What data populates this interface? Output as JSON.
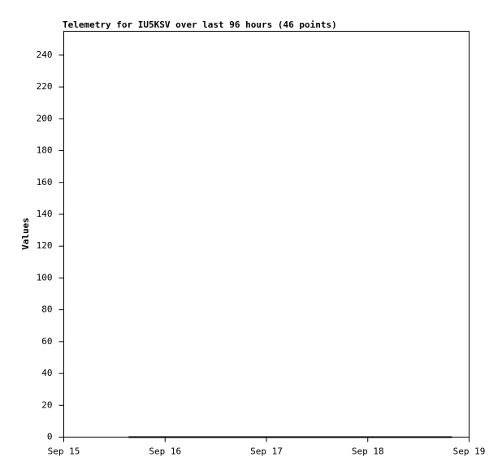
{
  "chart_data": {
    "type": "line",
    "title": "Telemetry for IU5KSV over last 96 hours (46 points)",
    "ylabel": "Values",
    "x": [
      0.64,
      0.71,
      0.78,
      0.85,
      0.92,
      0.99,
      1.07,
      1.14,
      1.21,
      1.28,
      1.35,
      1.42,
      1.49,
      1.56,
      1.63,
      1.7,
      1.77,
      1.85,
      1.92,
      1.99,
      2.06,
      2.13,
      2.2,
      2.27,
      2.34,
      2.41,
      2.48,
      2.55,
      2.63,
      2.7,
      2.77,
      2.84,
      2.91,
      2.98,
      3.05,
      3.12,
      3.19,
      3.26,
      3.34,
      3.41,
      3.48,
      3.55,
      3.62,
      3.69,
      3.76,
      3.83
    ],
    "values": [
      0,
      0,
      0,
      0,
      0,
      0,
      0,
      0,
      0,
      0,
      0,
      0,
      0,
      0,
      0,
      0,
      0,
      0,
      0,
      0,
      0,
      0,
      0,
      0,
      0,
      0,
      0,
      0,
      0,
      0,
      0,
      0,
      0,
      0,
      0,
      0,
      0,
      0,
      0,
      0,
      0,
      0,
      0,
      0,
      0,
      0
    ],
    "color": "#000000",
    "xlim": [
      0,
      4
    ],
    "xticks": [
      {
        "value": 0,
        "label": "Sep 15"
      },
      {
        "value": 1,
        "label": "Sep 16"
      },
      {
        "value": 2,
        "label": "Sep 17"
      },
      {
        "value": 3,
        "label": "Sep 18"
      },
      {
        "value": 4,
        "label": "Sep 19"
      }
    ],
    "ylim": [
      0,
      255
    ],
    "yticks": [
      0,
      20,
      40,
      60,
      80,
      100,
      120,
      140,
      160,
      180,
      200,
      220,
      240
    ],
    "grid": false
  }
}
